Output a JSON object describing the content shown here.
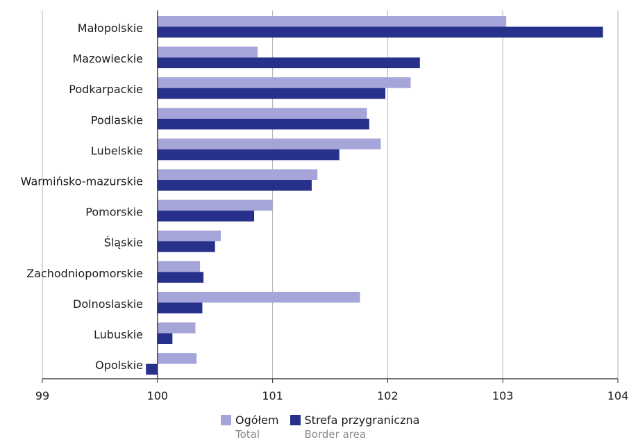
{
  "chart_data": {
    "type": "bar",
    "orientation": "horizontal",
    "categories": [
      "Małopolskie",
      "Mazowieckie",
      "Podkarpackie",
      "Podlaskie",
      "Lubelskie",
      "Warmińsko-mazurskie",
      "Pomorskie",
      "Śląskie",
      "Zachodniopomorskie",
      "Dolnoslaskie",
      "Lubuskie",
      "Opolskie"
    ],
    "series": [
      {
        "name": "Ogółem",
        "name_en": "Total",
        "color": "#a5a5d9",
        "values": [
          103.03,
          100.87,
          102.2,
          101.82,
          101.94,
          101.39,
          101.0,
          100.55,
          100.37,
          101.76,
          100.33,
          100.34
        ]
      },
      {
        "name": "Strefa przygraniczna",
        "name_en": "Border area",
        "color": "#27308a",
        "values": [
          103.87,
          102.28,
          101.98,
          101.84,
          101.58,
          101.34,
          100.84,
          100.5,
          100.4,
          100.39,
          100.13,
          99.9
        ]
      }
    ],
    "xlim": [
      99,
      104
    ],
    "xticks": [
      "99",
      "100",
      "101",
      "102",
      "103",
      "104"
    ],
    "baseline": 100,
    "grid": true,
    "legend_position": "bottom"
  }
}
